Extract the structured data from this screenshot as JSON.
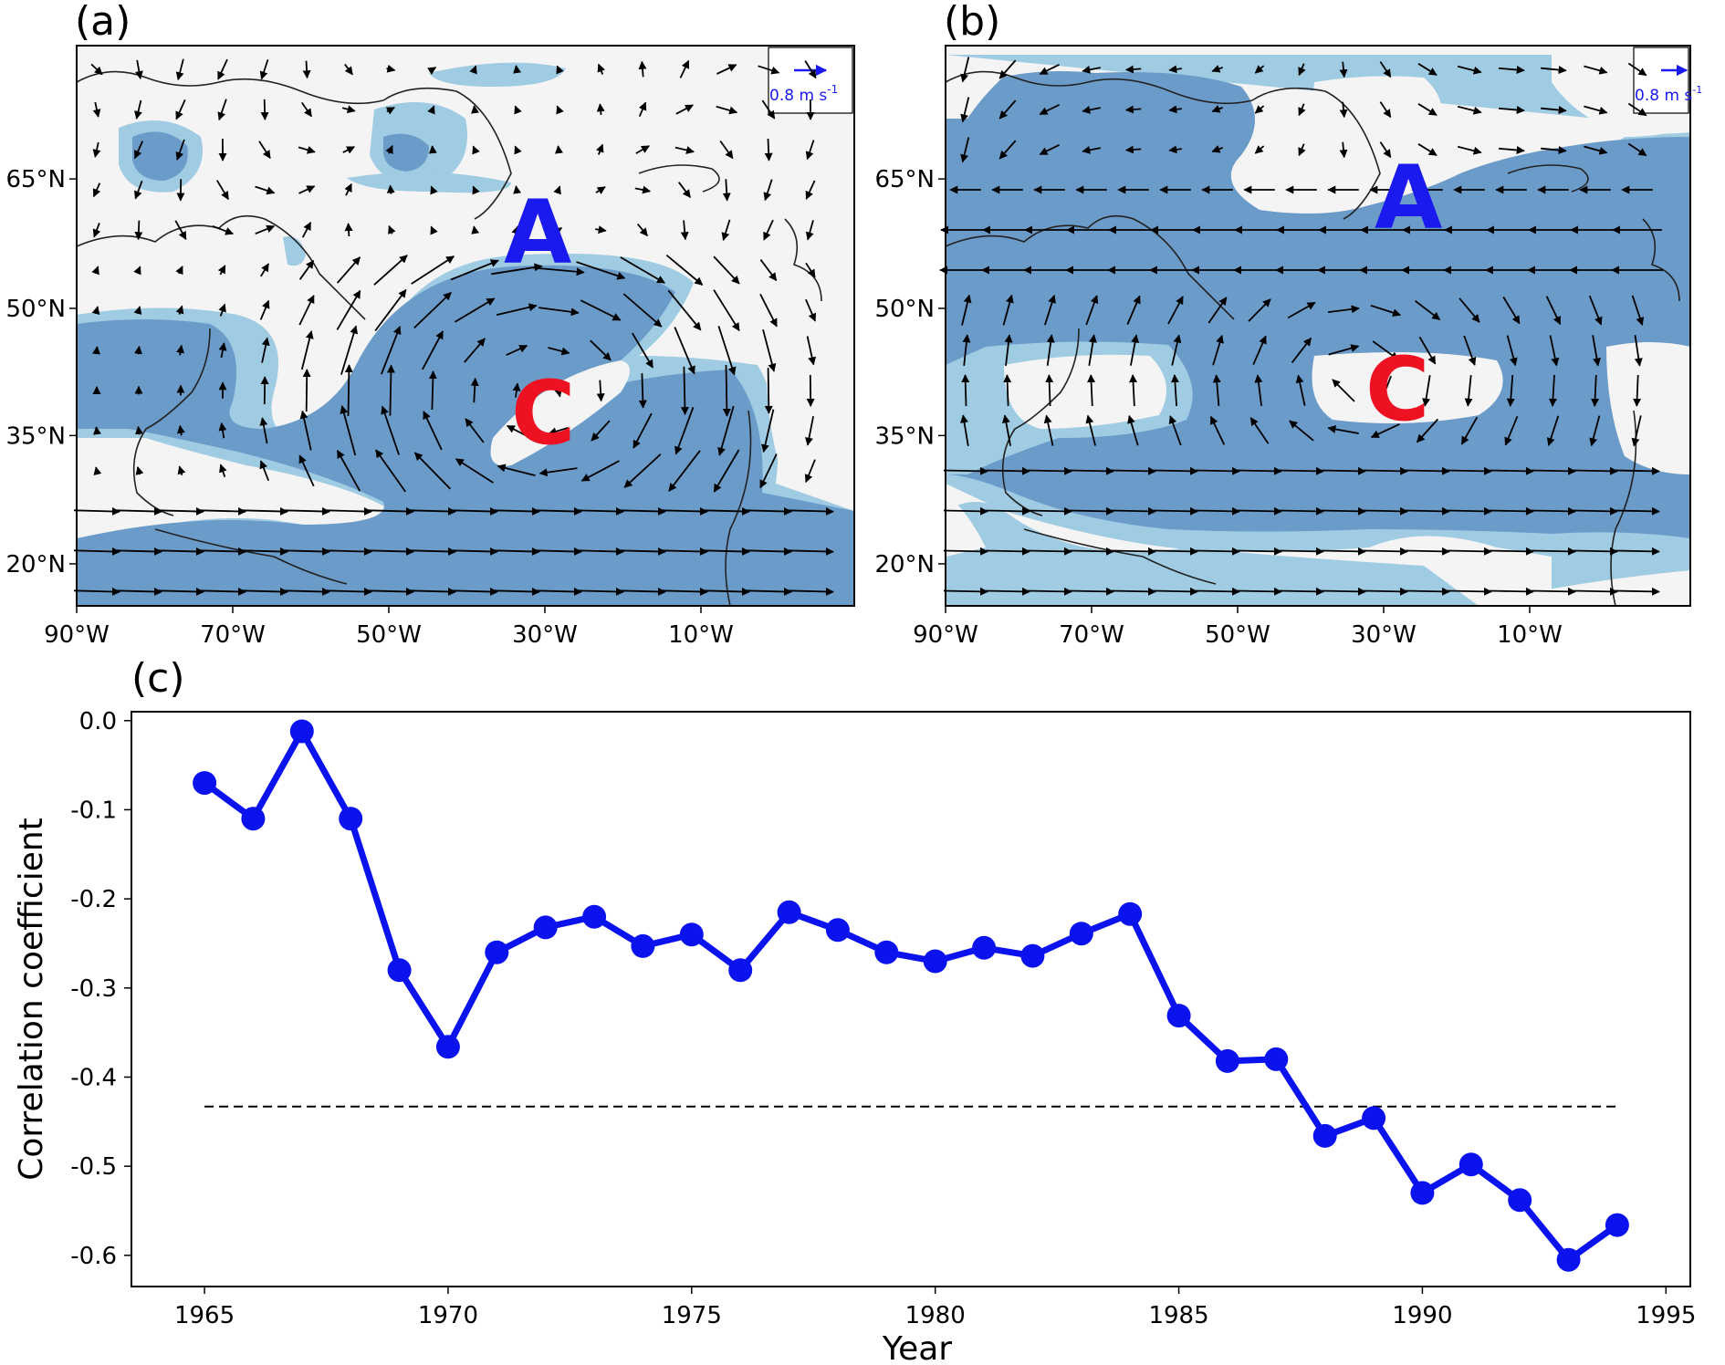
{
  "panels": {
    "a": {
      "label": "(a)",
      "center_high": "A",
      "center_low": "C",
      "scale_label": "0.8 m s",
      "scale_exp": "-1"
    },
    "b": {
      "label": "(b)",
      "center_high": "A",
      "center_low": "C",
      "scale_label": "0.8 m s",
      "scale_exp": "-1"
    }
  },
  "map_axes": {
    "lat_ticks": [
      "65°N",
      "50°N",
      "35°N",
      "20°N"
    ],
    "lon_ticks": [
      "90°W",
      "70°W",
      "50°W",
      "30°W",
      "10°W"
    ]
  },
  "colors": {
    "shade_dark": "#6b9bc9",
    "shade_light": "#9fcbe3",
    "land_bg": "#f4f4f4",
    "series": "#0a12ee",
    "high_letter": "#1a1aee",
    "low_letter": "#ee1122"
  },
  "chart_data": {
    "label": "(c)",
    "type": "line",
    "xlabel": "Year",
    "ylabel": "Correlation coefficient",
    "xlim": [
      1963.5,
      1995.5
    ],
    "ylim": [
      -0.635,
      0.01
    ],
    "x_ticks": [
      1965,
      1970,
      1975,
      1980,
      1985,
      1990,
      1995
    ],
    "y_ticks": [
      "0.0",
      "-0.1",
      "-0.2",
      "-0.3",
      "-0.4",
      "-0.5",
      "-0.6"
    ],
    "y_tick_values": [
      0.0,
      -0.1,
      -0.2,
      -0.3,
      -0.4,
      -0.5,
      -0.6
    ],
    "x": [
      1965,
      1966,
      1967,
      1968,
      1969,
      1970,
      1971,
      1972,
      1973,
      1974,
      1975,
      1976,
      1977,
      1978,
      1979,
      1980,
      1981,
      1982,
      1983,
      1984,
      1985,
      1986,
      1987,
      1988,
      1989,
      1990,
      1991,
      1992,
      1993,
      1994
    ],
    "series": [
      {
        "values": [
          -0.07,
          -0.11,
          -0.012,
          -0.11,
          -0.28,
          -0.366,
          -0.26,
          -0.232,
          -0.22,
          -0.253,
          -0.24,
          -0.28,
          -0.215,
          -0.235,
          -0.26,
          -0.27,
          -0.255,
          -0.264,
          -0.239,
          -0.217,
          -0.331,
          -0.382,
          -0.38,
          -0.466,
          -0.446,
          -0.53,
          -0.498,
          -0.538,
          -0.605,
          -0.566
        ]
      }
    ],
    "threshold": {
      "value": -0.433,
      "x_start": 1965,
      "x_end": 1994,
      "style": "dashed"
    },
    "grid": false
  }
}
